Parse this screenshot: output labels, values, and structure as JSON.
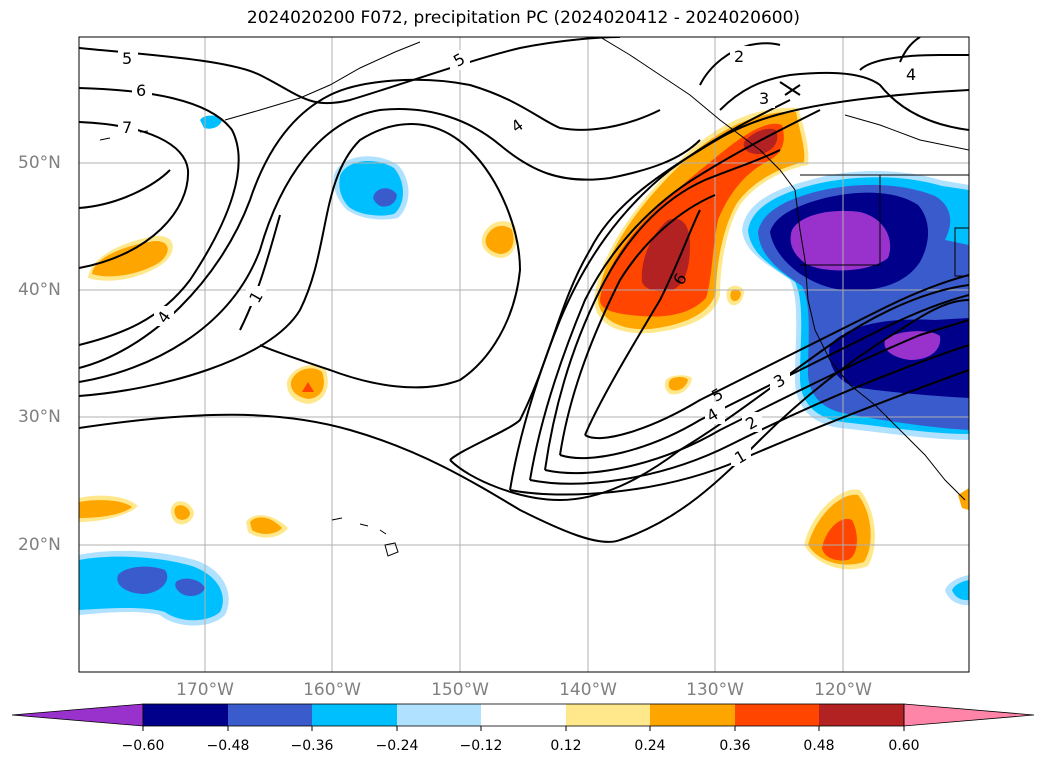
{
  "title": "2024020200 F072, precipitation PC (2024020412 - 2024020600)",
  "lon_ticks": [
    "170°W",
    "160°W",
    "150°W",
    "140°W",
    "130°W",
    "120°W"
  ],
  "lat_ticks": [
    "50°N",
    "40°N",
    "30°N",
    "20°N"
  ],
  "colorbar": {
    "levels": [
      "−0.60",
      "−0.48",
      "−0.36",
      "−0.24",
      "−0.12",
      "0.12",
      "0.24",
      "0.36",
      "0.48",
      "0.60"
    ],
    "colors": [
      "#9932cc",
      "#00008b",
      "#3a5bcc",
      "#00bfff",
      "#b0e2ff",
      "#ffffff",
      "#ffe88c",
      "#ffa500",
      "#ff4500",
      "#b22222",
      "#ff85a8"
    ]
  },
  "contour_labels": [
    "5",
    "6",
    "7",
    "5",
    "4",
    "2",
    "3",
    "4",
    "4",
    "1",
    "6",
    "5",
    "4",
    "3",
    "2",
    "1"
  ]
}
